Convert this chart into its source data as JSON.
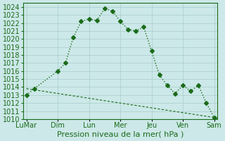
{
  "title": "",
  "xlabel": "Pression niveau de la mer( hPa )",
  "ylabel": "",
  "background_color": "#cce8e8",
  "grid_color": "#aacccc",
  "line_color": "#1a6b1a",
  "ylim": [
    1010,
    1024.5
  ],
  "yticks": [
    1010,
    1011,
    1012,
    1013,
    1014,
    1015,
    1016,
    1017,
    1018,
    1019,
    1020,
    1021,
    1022,
    1023,
    1024
  ],
  "x_labels": [
    "LuMar",
    "Dim",
    "Lun",
    "Mer",
    "Jeu",
    "Ven",
    "Sam"
  ],
  "series1_x": [
    0,
    0.5,
    2,
    2.5,
    3,
    3.5,
    4,
    4.5,
    5,
    5.5,
    6,
    6.5,
    7,
    7.5,
    8,
    8.5,
    9,
    9.5,
    10,
    10.5,
    11,
    11.5,
    12
  ],
  "series1_y": [
    1013.0,
    1013.8,
    1016.0,
    1017.0,
    1020.2,
    1022.2,
    1022.5,
    1022.3,
    1023.8,
    1023.5,
    1022.2,
    1021.2,
    1021.0,
    1021.5,
    1018.5,
    1015.5,
    1014.2,
    1013.2,
    1014.2,
    1013.5,
    1014.2,
    1012.0,
    1010.2
  ],
  "series2_x": [
    0,
    12
  ],
  "series2_y": [
    1013.8,
    1010.2
  ],
  "x_tick_positions": [
    0,
    2,
    4,
    6,
    8,
    10,
    12
  ],
  "font_color": "#1a6b1a",
  "font_size": 7,
  "marker_size": 3,
  "line_width": 1.0
}
